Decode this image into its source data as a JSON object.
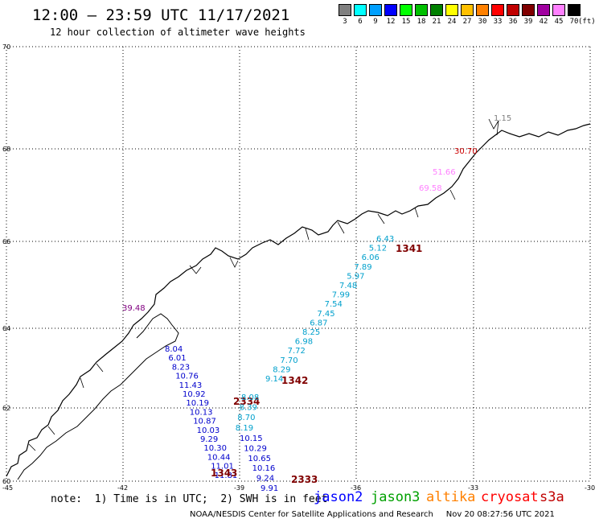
{
  "header": {
    "title": "12:00 — 23:59 UTC 11/17/2021",
    "subtitle": "12 hour collection of altimeter wave heights"
  },
  "legend": {
    "unit": "(ft)",
    "bins": [
      {
        "label": "3",
        "color": "#808080"
      },
      {
        "label": "6",
        "color": "#00ffff"
      },
      {
        "label": "9",
        "color": "#00a0ff"
      },
      {
        "label": "12",
        "color": "#0000ff"
      },
      {
        "label": "15",
        "color": "#00ff00"
      },
      {
        "label": "18",
        "color": "#00c000"
      },
      {
        "label": "21",
        "color": "#008000"
      },
      {
        "label": "24",
        "color": "#ffff00"
      },
      {
        "label": "27",
        "color": "#ffc000"
      },
      {
        "label": "30",
        "color": "#ff8000"
      },
      {
        "label": "33",
        "color": "#ff0000"
      },
      {
        "label": "36",
        "color": "#c00000"
      },
      {
        "label": "39",
        "color": "#800000"
      },
      {
        "label": "42",
        "color": "#a000a0"
      },
      {
        "label": "45",
        "color": "#ff80ff"
      },
      {
        "label": "70",
        "color": "#000000"
      }
    ]
  },
  "map": {
    "lon_ticks": [
      "-45",
      "-42",
      "-39",
      "-36",
      "-33",
      "-30"
    ],
    "lat_ticks": [
      "60",
      "62",
      "64",
      "66",
      "68",
      "70"
    ],
    "tracks": [
      {
        "pass": "1341",
        "pass_color": "#800000",
        "color": "#00a0cc",
        "values": [
          "6.43",
          "5.12",
          "6.06",
          "7.89",
          "5.97",
          "7.48",
          "7.99",
          "7.54",
          "7.45",
          "6.87",
          "8.25",
          "6.98",
          "7.72",
          "7.70",
          "8.29",
          "9.14"
        ]
      },
      {
        "pass": "1342",
        "pass_color": "#800000",
        "color": "#0000cc",
        "values": [
          "8.04",
          "6.01",
          "8.23",
          "10.76",
          "11.43",
          "10.92",
          "10.19",
          "10.13",
          "10.87",
          "10.03",
          "9.29",
          "10.30",
          "10.44",
          "11.01",
          "11.81"
        ]
      },
      {
        "pass": "2334",
        "pass_color": "#800000",
        "color": "#0000cc",
        "values": [
          "10.15",
          "10.29",
          "10.65",
          "10.16",
          "9.24",
          "9.91"
        ]
      },
      {
        "pass": "1343",
        "pass_color": "#800000",
        "color": "#00a0cc",
        "values": [
          "8.08",
          "8.39",
          "8.70",
          "8.19"
        ]
      },
      {
        "pass": "2333",
        "pass_color": "#800000",
        "color": "#c00000",
        "values": [
          "1.15",
          "30.70",
          "51.66",
          "69.58",
          "39.48"
        ]
      }
    ]
  },
  "footer": {
    "note": "note:  1) Time is in UTC;  2) SWH is in feet",
    "satellites": [
      {
        "name": "jason2",
        "color": "#0000ff"
      },
      {
        "name": "jason3",
        "color": "#00a000"
      },
      {
        "name": "altika",
        "color": "#ff8000"
      },
      {
        "name": "cryosat",
        "color": "#ff0000"
      },
      {
        "name": "s3a",
        "color": "#c00000"
      }
    ],
    "credit": "NOAA/NESDIS Center for Satellite Applications and Research     Nov 20 08:27:56 UTC 2021"
  }
}
